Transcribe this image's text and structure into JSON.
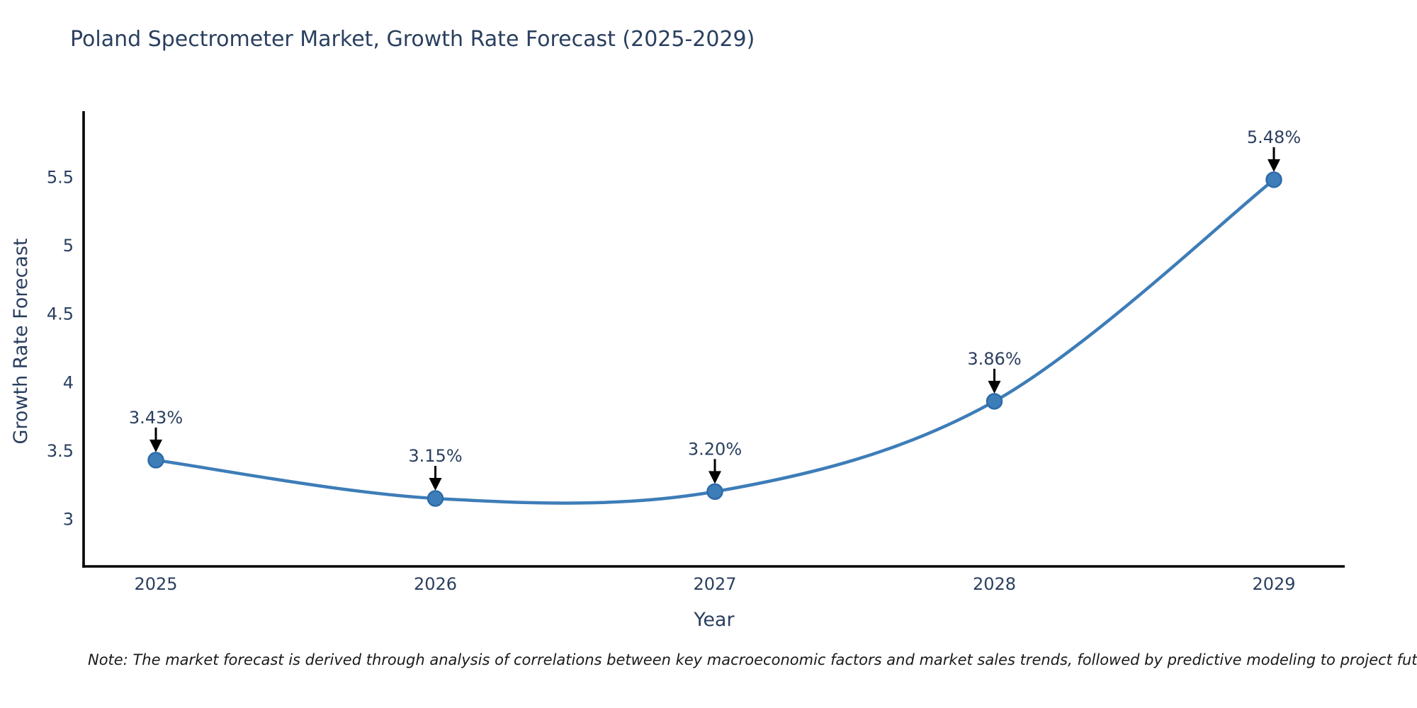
{
  "chart": {
    "title": "Poland Spectrometer Market, Growth Rate Forecast (2025-2029)",
    "note": "Note: The market forecast is derived through analysis of correlations between key macroeconomic factors and market sales trends, followed by predictive modeling to project future sales"
  },
  "chart_data": {
    "type": "line",
    "title": "Poland Spectrometer Market, Growth Rate Forecast (2025-2029)",
    "xlabel": "Year",
    "ylabel": "Growth Rate Forecast",
    "categories": [
      "2025",
      "2026",
      "2027",
      "2028",
      "2029"
    ],
    "values": [
      3.43,
      3.15,
      3.2,
      3.86,
      5.48
    ],
    "point_labels": [
      "3.43%",
      "3.15%",
      "3.20%",
      "3.86%",
      "5.48%"
    ],
    "ytick_labels": [
      "3",
      "3.5",
      "4",
      "4.5",
      "5",
      "5.5"
    ],
    "ytick_values": [
      3,
      3.5,
      4,
      4.5,
      5,
      5.5
    ],
    "ylim": [
      2.65,
      5.98
    ],
    "line_shape": "spline",
    "grid": false,
    "legend_position": "none",
    "colors": {
      "line": "#3d7db8",
      "marker_fill": "#3d7db8",
      "marker_edge": "#2e6ba8",
      "arrow": "#000000",
      "axis": "#000000",
      "chart_text": "#2a3f5f",
      "note_text": "#1a1a1a",
      "background": "#ffffff"
    }
  }
}
